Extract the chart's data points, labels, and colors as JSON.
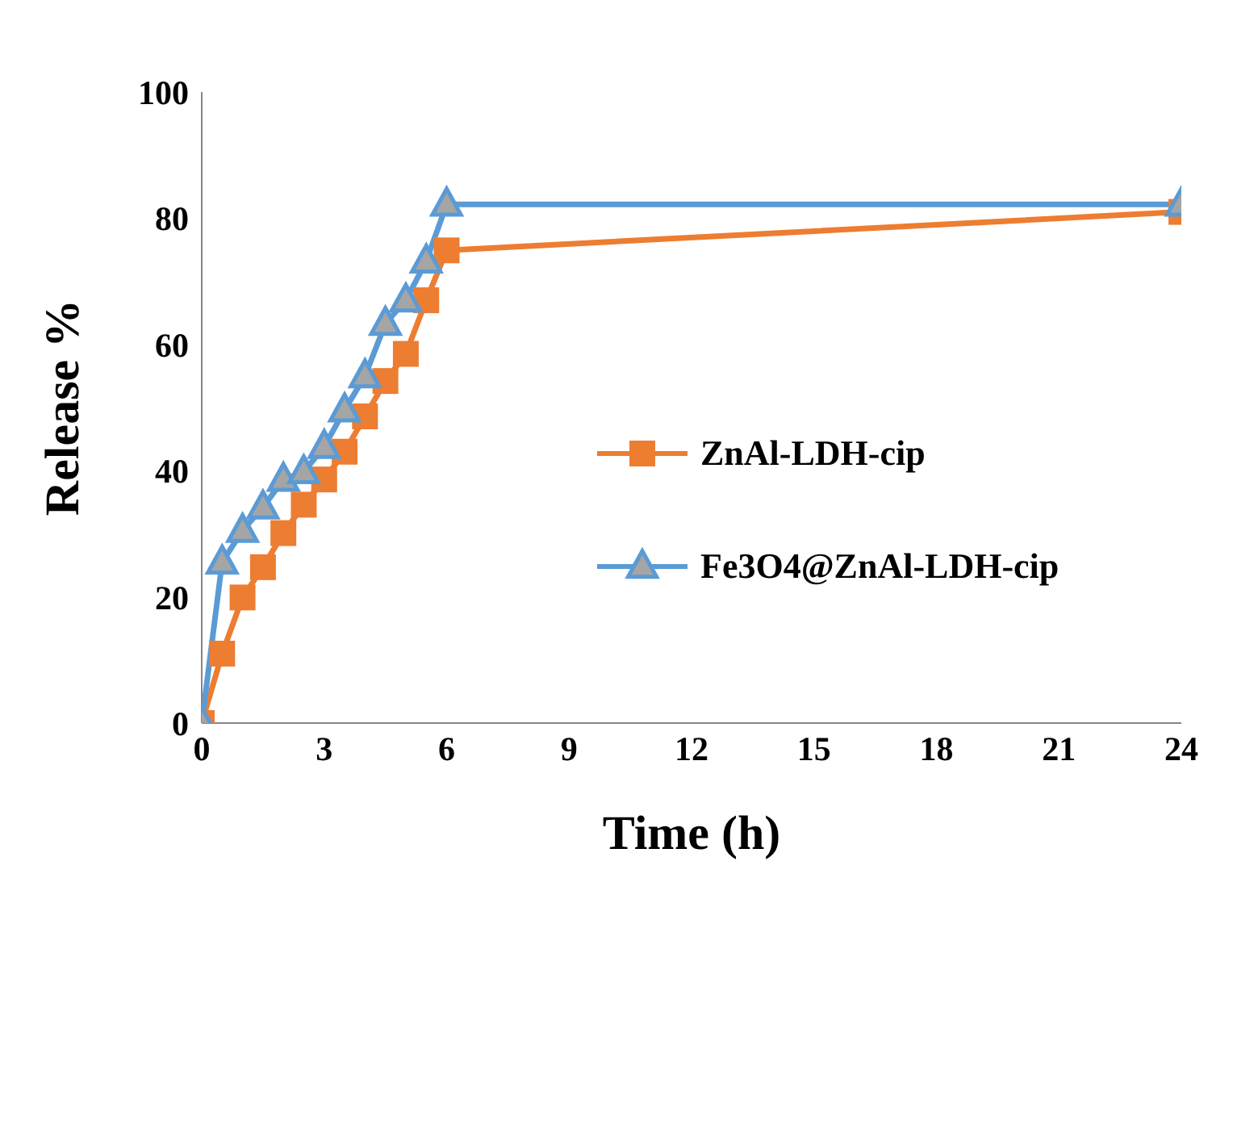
{
  "chart_data": {
    "type": "line",
    "xlabel": "Time (h)",
    "ylabel": "Release %",
    "x": [
      0,
      0.5,
      1,
      1.5,
      2,
      2.5,
      3,
      3.5,
      4,
      4.5,
      5,
      5.5,
      6,
      24
    ],
    "series": [
      {
        "name": "ZnAl-LDH-cip",
        "color": "#ed7d31",
        "marker": "square",
        "values": [
          0,
          11,
          19.9,
          24.7,
          30.1,
          34.6,
          38.6,
          43,
          48.6,
          54.2,
          58.5,
          67,
          74.9,
          81
        ]
      },
      {
        "name": "Fe3O4@ZnAl-LDH-cip",
        "color": "#5b9bd5",
        "marker": "triangle",
        "values": [
          0,
          25.5,
          30.5,
          34.2,
          38.6,
          39.8,
          43.8,
          49.6,
          55,
          63.3,
          67,
          73.2,
          82.2,
          82.2
        ]
      }
    ],
    "xlim": [
      0,
      24
    ],
    "xticks": [
      0,
      3,
      6,
      9,
      12,
      15,
      18,
      21,
      24
    ],
    "ylim": [
      0,
      100
    ],
    "yticks": [
      0,
      20,
      40,
      60,
      80,
      100
    ],
    "grid": false,
    "legend": "right",
    "line_style": "solid"
  }
}
